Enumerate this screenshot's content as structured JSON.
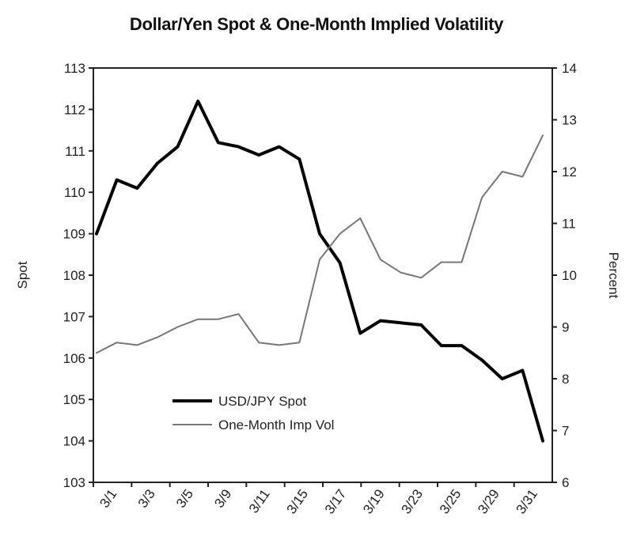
{
  "chart_data": {
    "type": "line",
    "title": "Dollar/Yen Spot & One-Month Implied Volatility",
    "x_tick_labels": [
      "3/1",
      "3/3",
      "3/5",
      "3/9",
      "3/11",
      "3/15",
      "3/17",
      "3/19",
      "3/23",
      "3/25",
      "3/29",
      "3/31"
    ],
    "y_left": {
      "label": "Spot",
      "lim": [
        103,
        113
      ],
      "ticks": [
        103,
        104,
        105,
        106,
        107,
        108,
        109,
        110,
        111,
        112,
        113
      ]
    },
    "y_right": {
      "label": "Percent",
      "lim": [
        6,
        14
      ],
      "ticks": [
        6,
        7,
        8,
        9,
        10,
        11,
        12,
        13,
        14
      ]
    },
    "legend_position": "lower-center",
    "grid": false,
    "series": [
      {
        "name": "USD/JPY Spot",
        "axis": "left",
        "color": "#000000",
        "values": [
          109.0,
          110.3,
          110.1,
          110.7,
          111.1,
          112.2,
          111.2,
          111.1,
          110.9,
          111.1,
          110.8,
          109.0,
          108.3,
          106.6,
          106.9,
          106.85,
          106.8,
          106.3,
          106.3,
          105.95,
          105.5,
          105.7,
          104.0
        ]
      },
      {
        "name": "One-Month Imp Vol",
        "axis": "right",
        "color": "#777777",
        "values": [
          8.5,
          8.7,
          8.65,
          8.8,
          9.0,
          9.15,
          9.15,
          9.25,
          8.7,
          8.65,
          8.7,
          10.3,
          10.8,
          11.1,
          10.3,
          10.05,
          9.95,
          10.25,
          10.25,
          11.5,
          12.0,
          11.9,
          12.7
        ]
      }
    ]
  }
}
